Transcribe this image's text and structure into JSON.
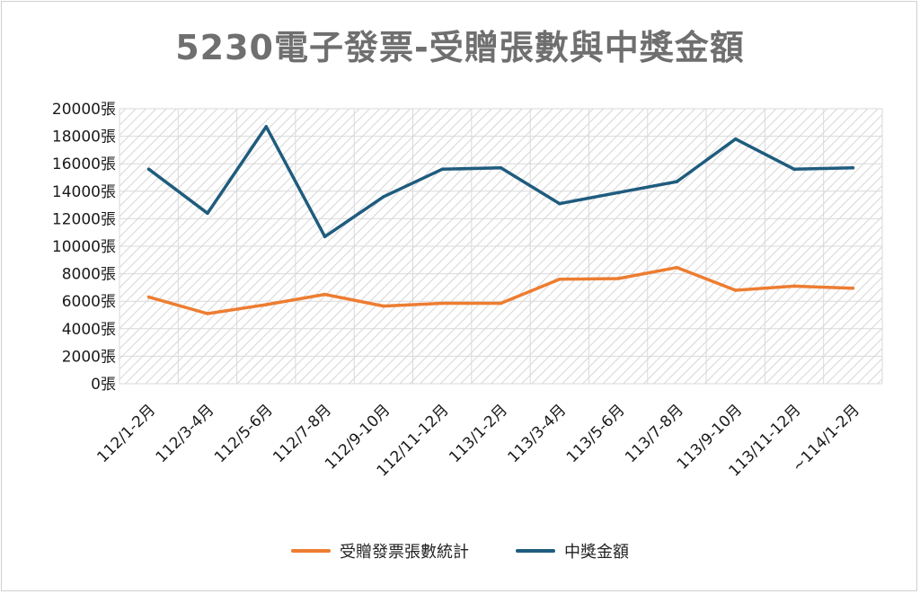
{
  "chart_data": {
    "type": "line",
    "title": "5230電子發票-受贈張數與中獎金額",
    "categories": [
      "112/1-2月",
      "112/3-4月",
      "112/5-6月",
      "112/7-8月",
      "112/9-10月",
      "112/11-12月",
      "113/1-2月",
      "113/3-4月",
      "113/5-6月",
      "113/7-8月",
      "113/9-10月",
      "113/11-12月",
      "~114/1-2月"
    ],
    "y_ticks": [
      "0張",
      "2000張",
      "4000張",
      "6000張",
      "8000張",
      "10000張",
      "12000張",
      "14000張",
      "16000張",
      "18000張",
      "20000張"
    ],
    "ylim": [
      0,
      20000
    ],
    "grid": true,
    "legend_position": "bottom",
    "series": [
      {
        "name": "受贈發票張數統計",
        "color": "#ED7D31",
        "values": [
          6300,
          5100,
          5750,
          6500,
          5650,
          5850,
          5850,
          7600,
          7650,
          8450,
          6800,
          7100,
          6950
        ]
      },
      {
        "name": "中獎金額",
        "color": "#1F5C7E",
        "values": [
          15600,
          12400,
          18700,
          10700,
          13600,
          15600,
          15700,
          13100,
          13900,
          14700,
          17800,
          15600,
          15700
        ]
      }
    ]
  }
}
